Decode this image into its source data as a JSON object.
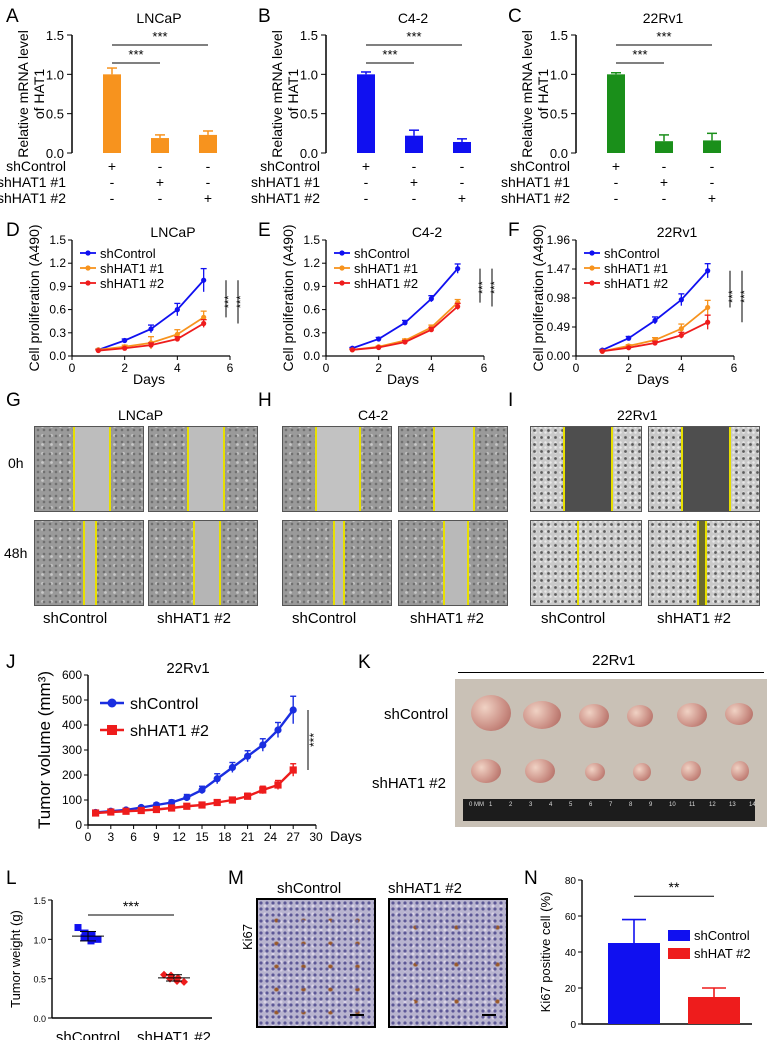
{
  "panels": {
    "A": {
      "letter": "A",
      "title": "LNCaP",
      "ylabel": [
        "Relative mRNA level",
        "of HAT1"
      ],
      "yticks": [
        "0.0",
        "0.5",
        "1.0",
        "1.5"
      ],
      "values": [
        1.0,
        0.19,
        0.23
      ],
      "errors": [
        0.08,
        0.04,
        0.05
      ],
      "color": "#f7931e",
      "sig": [
        "***",
        "***"
      ]
    },
    "B": {
      "letter": "B",
      "title": "C4-2",
      "ylabel": [
        "Relative mRNA level",
        "of HAT1"
      ],
      "yticks": [
        "0.0",
        "0.5",
        "1.0",
        "1.5"
      ],
      "values": [
        1.0,
        0.22,
        0.14
      ],
      "errors": [
        0.03,
        0.07,
        0.04
      ],
      "color": "#1010f0",
      "sig": [
        "***",
        "***"
      ]
    },
    "C": {
      "letter": "C",
      "title": "22Rv1",
      "ylabel": [
        "Relative mRNA level",
        "of HAT1"
      ],
      "yticks": [
        "0.0",
        "0.5",
        "1.0",
        "1.5"
      ],
      "values": [
        1.0,
        0.15,
        0.16
      ],
      "errors": [
        0.02,
        0.08,
        0.09
      ],
      "color": "#1a8f1a",
      "sig": [
        "***",
        "***"
      ]
    },
    "D": {
      "letter": "D",
      "title": "LNCaP",
      "ylabel": "Cell proliferation (A490)",
      "yticks": [
        "0.0",
        "0.3",
        "0.6",
        "0.9",
        "1.2",
        "1.5"
      ],
      "xticks": [
        "0",
        "2",
        "4",
        "6"
      ],
      "xlabel": "Days",
      "sig": [
        "***",
        "***"
      ]
    },
    "E": {
      "letter": "E",
      "title": "C4-2",
      "ylabel": "Cell proliferation (A490)",
      "yticks": [
        "0.0",
        "0.3",
        "0.6",
        "0.9",
        "1.2",
        "1.5"
      ],
      "xticks": [
        "0",
        "2",
        "4",
        "6"
      ],
      "xlabel": "Days",
      "sig": [
        "***",
        "***"
      ]
    },
    "F": {
      "letter": "F",
      "title": "22Rv1",
      "ylabel": "Cell proliferation (A490)",
      "yticks": [
        "0.00",
        "0.49",
        "0.98",
        "1.47",
        "1.96"
      ],
      "xticks": [
        "0",
        "2",
        "4",
        "6"
      ],
      "xlabel": "Days",
      "sig": [
        "***",
        "***"
      ]
    },
    "G": {
      "letter": "G",
      "title": "LNCaP"
    },
    "H": {
      "letter": "H",
      "title": "C4-2"
    },
    "I": {
      "letter": "I",
      "title": "22Rv1"
    },
    "J": {
      "letter": "J",
      "title": "22Rv1",
      "ylabel": "Tumor volume (mm³)",
      "xlabel": "Days",
      "legend": [
        "shControl",
        "shHAT1 #2"
      ],
      "sig": "***",
      "yticks": [
        "0",
        "100",
        "200",
        "300",
        "400",
        "500",
        "600"
      ],
      "xticks": [
        "0",
        "3",
        "6",
        "9",
        "12",
        "15",
        "18",
        "21",
        "24",
        "27",
        "30"
      ]
    },
    "K": {
      "letter": "K",
      "title": "22Rv1",
      "rows": [
        "shControl",
        "shHAT1 #2"
      ],
      "ruler": [
        "0 MM",
        "1",
        "2",
        "3",
        "4",
        "5",
        "6",
        "7",
        "8",
        "9",
        "10",
        "11",
        "12",
        "13",
        "14"
      ]
    },
    "L": {
      "letter": "L",
      "ylabel": "Tumor weight (g)",
      "yticks": [
        "0.0",
        "0.5",
        "1.0",
        "1.5"
      ],
      "categories": [
        "shControl",
        "shHAT1 #2"
      ],
      "sig": "***"
    },
    "M": {
      "letter": "M",
      "stain": "Ki67",
      "columns": [
        "shControl",
        "shHAT1 #2"
      ]
    },
    "N": {
      "letter": "N",
      "ylabel": "Ki67 positive cell (%)",
      "yticks": [
        "0",
        "20",
        "40",
        "60",
        "80"
      ],
      "legend": [
        "shControl",
        "shHAT #2"
      ],
      "sig": "**"
    }
  },
  "conditions": {
    "rows": [
      "shControl",
      "shHAT1 #1",
      "shHAT1 #2"
    ],
    "signs": [
      [
        "+",
        "-",
        "-"
      ],
      [
        "-",
        "+",
        "-"
      ],
      [
        "-",
        "-",
        "+"
      ]
    ]
  },
  "legend3": [
    "shControl",
    "shHAT1 #1",
    "shHAT1 #2"
  ],
  "times": [
    "0h",
    "48h"
  ],
  "wound_labels": [
    "shControl",
    "shHAT1 #2"
  ],
  "chart_data": [
    {
      "panel": "A",
      "type": "bar",
      "title": "LNCaP",
      "categories": [
        "shControl",
        "shHAT1 #1",
        "shHAT1 #2"
      ],
      "values": [
        1.0,
        0.19,
        0.23
      ],
      "ylim": [
        0,
        1.5
      ],
      "ylabel": "Relative mRNA level of HAT1"
    },
    {
      "panel": "B",
      "type": "bar",
      "title": "C4-2",
      "categories": [
        "shControl",
        "shHAT1 #1",
        "shHAT1 #2"
      ],
      "values": [
        1.0,
        0.22,
        0.14
      ],
      "ylim": [
        0,
        1.5
      ],
      "ylabel": "Relative mRNA level of HAT1"
    },
    {
      "panel": "C",
      "type": "bar",
      "title": "22Rv1",
      "categories": [
        "shControl",
        "shHAT1 #1",
        "shHAT1 #2"
      ],
      "values": [
        1.0,
        0.15,
        0.16
      ],
      "ylim": [
        0,
        1.5
      ],
      "ylabel": "Relative mRNA level of HAT1"
    },
    {
      "panel": "D",
      "type": "line",
      "title": "LNCaP",
      "x": [
        1,
        2,
        3,
        4,
        5
      ],
      "xlim": [
        0,
        6
      ],
      "ylim": [
        0,
        1.5
      ],
      "xlabel": "Days",
      "ylabel": "Cell proliferation (A490)",
      "series": [
        {
          "name": "shControl",
          "color": "#1010f0",
          "values": [
            0.08,
            0.2,
            0.35,
            0.6,
            0.98
          ],
          "errors": [
            0.01,
            0.02,
            0.05,
            0.08,
            0.15
          ]
        },
        {
          "name": "shHAT1 #1",
          "color": "#f7931e",
          "values": [
            0.08,
            0.12,
            0.17,
            0.28,
            0.5
          ],
          "errors": [
            0.01,
            0.02,
            0.08,
            0.06,
            0.08
          ]
        },
        {
          "name": "shHAT1 #2",
          "color": "#ee1c1c",
          "values": [
            0.07,
            0.1,
            0.14,
            0.22,
            0.42
          ],
          "errors": [
            0.01,
            0.01,
            0.03,
            0.03,
            0.05
          ]
        }
      ]
    },
    {
      "panel": "E",
      "type": "line",
      "title": "C4-2",
      "x": [
        1,
        2,
        3,
        4,
        5
      ],
      "xlim": [
        0,
        6
      ],
      "ylim": [
        0,
        1.5
      ],
      "xlabel": "Days",
      "ylabel": "Cell proliferation (A490)",
      "series": [
        {
          "name": "shControl",
          "color": "#1010f0",
          "values": [
            0.1,
            0.22,
            0.43,
            0.74,
            1.13
          ],
          "errors": [
            0.01,
            0.02,
            0.03,
            0.04,
            0.06
          ]
        },
        {
          "name": "shHAT1 #1",
          "color": "#f7931e",
          "values": [
            0.08,
            0.12,
            0.2,
            0.37,
            0.69
          ],
          "errors": [
            0.01,
            0.01,
            0.02,
            0.03,
            0.04
          ]
        },
        {
          "name": "shHAT1 #2",
          "color": "#ee1c1c",
          "values": [
            0.08,
            0.11,
            0.18,
            0.34,
            0.64
          ],
          "errors": [
            0.01,
            0.01,
            0.02,
            0.03,
            0.04
          ]
        }
      ]
    },
    {
      "panel": "F",
      "type": "line",
      "title": "22Rv1",
      "x": [
        1,
        2,
        3,
        4,
        5
      ],
      "xlim": [
        0,
        6
      ],
      "ylim": [
        0,
        1.96
      ],
      "xlabel": "Days",
      "ylabel": "Cell proliferation (A490)",
      "series": [
        {
          "name": "shControl",
          "color": "#1010f0",
          "values": [
            0.1,
            0.3,
            0.6,
            0.95,
            1.44
          ],
          "errors": [
            0.01,
            0.03,
            0.06,
            0.1,
            0.12
          ]
        },
        {
          "name": "shHAT1 #1",
          "color": "#f7931e",
          "values": [
            0.08,
            0.17,
            0.27,
            0.46,
            0.82
          ],
          "errors": [
            0.01,
            0.02,
            0.04,
            0.08,
            0.12
          ]
        },
        {
          "name": "shHAT1 #2",
          "color": "#ee1c1c",
          "values": [
            0.08,
            0.14,
            0.22,
            0.35,
            0.57
          ],
          "errors": [
            0.01,
            0.01,
            0.03,
            0.05,
            0.12
          ]
        }
      ]
    },
    {
      "panel": "J",
      "type": "line",
      "title": "22Rv1",
      "x": [
        1,
        3,
        5,
        7,
        9,
        11,
        13,
        15,
        17,
        19,
        21,
        23,
        25,
        27
      ],
      "xlim": [
        0,
        30
      ],
      "ylim": [
        0,
        600
      ],
      "xlabel": "Days",
      "ylabel": "Tumor volume (mm³)",
      "series": [
        {
          "name": "shControl",
          "color": "#1a2ee0",
          "values": [
            50,
            55,
            60,
            70,
            80,
            90,
            110,
            140,
            185,
            230,
            275,
            320,
            380,
            460
          ],
          "errors": [
            5,
            5,
            6,
            6,
            8,
            10,
            12,
            15,
            20,
            20,
            22,
            25,
            30,
            55
          ]
        },
        {
          "name": "shHAT1 #2",
          "color": "#ee1c1c",
          "values": [
            48,
            52,
            55,
            58,
            62,
            68,
            75,
            80,
            90,
            100,
            115,
            140,
            160,
            220
          ],
          "errors": [
            5,
            5,
            5,
            5,
            6,
            6,
            8,
            8,
            10,
            10,
            12,
            15,
            18,
            25
          ]
        }
      ]
    },
    {
      "panel": "L",
      "type": "scatter",
      "categories": [
        "shControl",
        "shHAT1 #2"
      ],
      "ylim": [
        0,
        1.5
      ],
      "ylabel": "Tumor weight (g)",
      "series": [
        {
          "name": "shControl",
          "color": "#1010f0",
          "values": [
            1.15,
            1.08,
            1.05,
            1.02,
            0.98,
            1.0
          ],
          "mean": 1.04,
          "sd": 0.06
        },
        {
          "name": "shHAT1 #2",
          "color": "#ee1c1c",
          "values": [
            0.55,
            0.54,
            0.51,
            0.5,
            0.47,
            0.46
          ],
          "mean": 0.51,
          "sd": 0.04
        }
      ]
    },
    {
      "panel": "N",
      "type": "bar",
      "categories": [
        "shControl",
        "shHAT #2"
      ],
      "values": [
        45,
        15
      ],
      "errors": [
        13,
        5
      ],
      "colors": [
        "#1010f0",
        "#ee1c1c"
      ],
      "ylim": [
        0,
        80
      ],
      "ylabel": "Ki67 positive cell (%)"
    }
  ]
}
